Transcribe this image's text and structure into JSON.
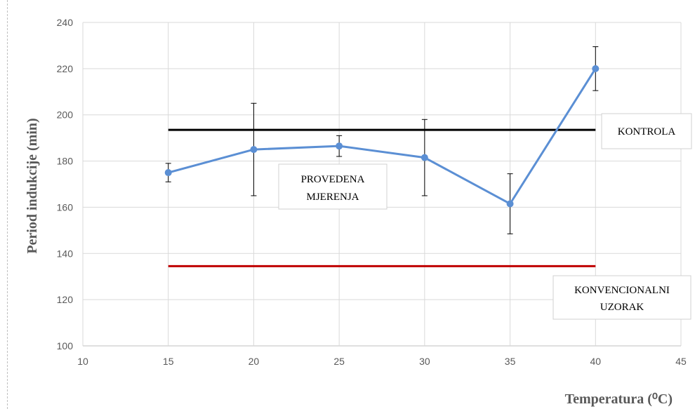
{
  "chart_data": {
    "type": "line",
    "xlabel": "Temperatura (⁰C)",
    "ylabel": "Period indukcije (min)",
    "xlim": [
      10,
      45
    ],
    "ylim": [
      100,
      240
    ],
    "xticks": [
      10,
      15,
      20,
      25,
      30,
      35,
      40,
      45
    ],
    "yticks": [
      100,
      120,
      140,
      160,
      180,
      200,
      220,
      240
    ],
    "grid": true,
    "series": [
      {
        "name": "PROVEDENA MJERENJA",
        "color": "#5b8fd4",
        "x": [
          15,
          20,
          25,
          30,
          35,
          40
        ],
        "y": [
          175,
          185,
          186.5,
          181.5,
          161.5,
          220
        ],
        "error": [
          4,
          20,
          4.5,
          16.5,
          13,
          9.5
        ]
      }
    ],
    "reference_lines": [
      {
        "name": "KONTROLA",
        "y": 193.5,
        "x_range": [
          15,
          40
        ],
        "color": "#000000"
      },
      {
        "name": "KONVENCIONALNI UZORAK",
        "y": 134.5,
        "x_range": [
          15,
          40
        ],
        "color": "#c00000"
      }
    ],
    "annotations": [
      {
        "lines": [
          "PROVEDENA",
          "MJERENJA"
        ]
      },
      {
        "lines": [
          "KONTROLA"
        ]
      },
      {
        "lines": [
          "KONVENCIONALNI",
          "UZORAK"
        ]
      }
    ]
  }
}
